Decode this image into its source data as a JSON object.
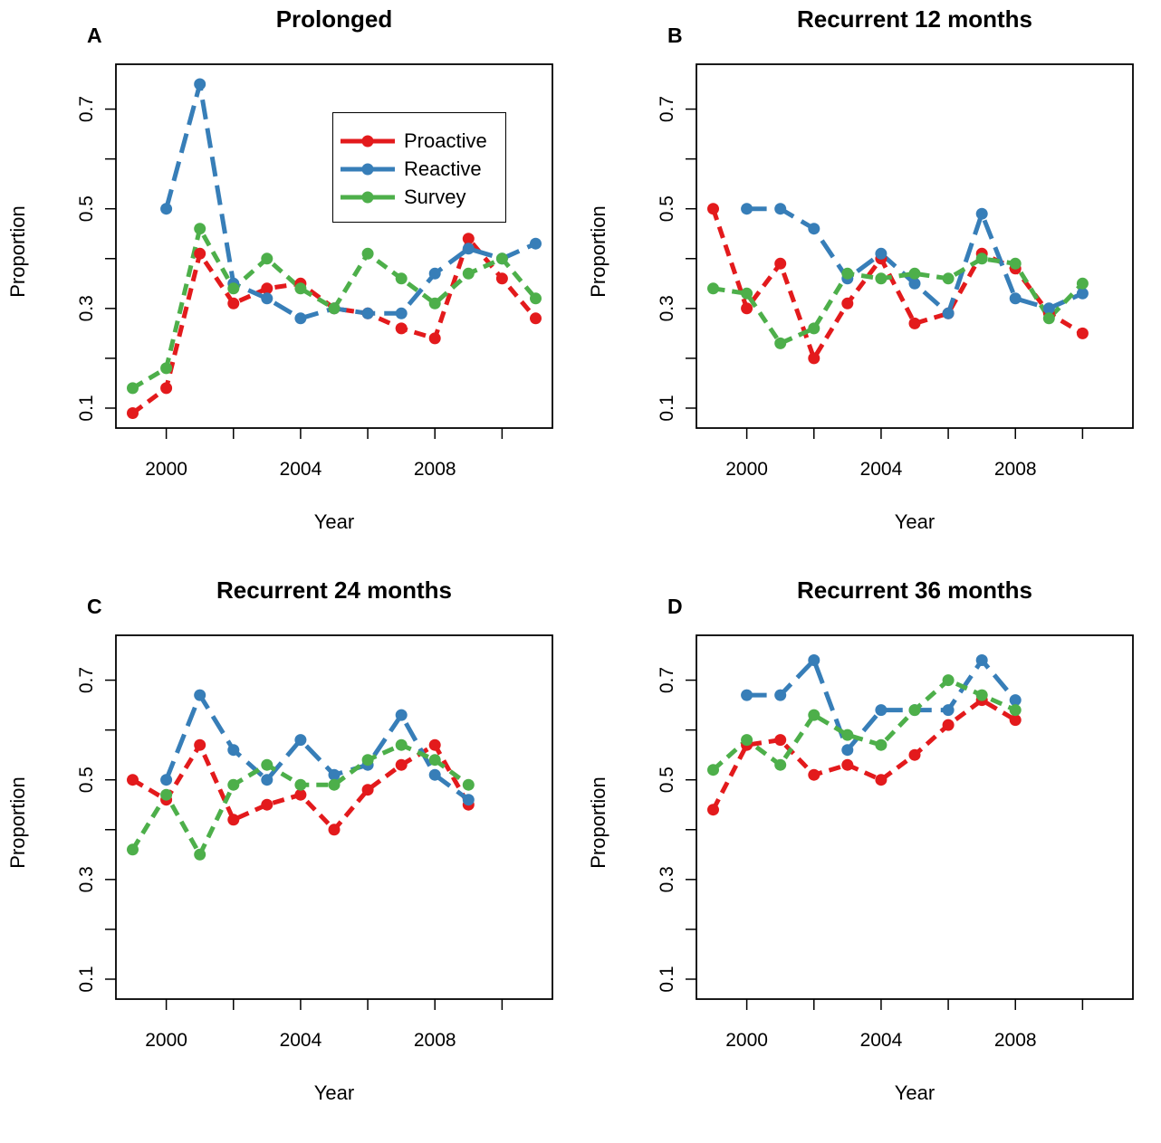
{
  "colors": {
    "Proactive": "#e31a1c",
    "Reactive": "#377eb8",
    "Survey": "#4daf4a"
  },
  "legend": {
    "placement": "top-right",
    "items": [
      "Proactive",
      "Reactive",
      "Survey"
    ]
  },
  "chart_data": [
    {
      "type": "line",
      "panel": "A",
      "title": "Prolonged",
      "xlabel": "Year",
      "ylabel": "Proportion",
      "xlim": [
        1998.5,
        2011.5
      ],
      "ylim": [
        0.06,
        0.79
      ],
      "xticks": [
        2000,
        2002,
        2004,
        2006,
        2008,
        2010
      ],
      "xticklabels": [
        "2000",
        "",
        "2004",
        "",
        "2008",
        ""
      ],
      "yticks": [
        0.1,
        0.2,
        0.3,
        0.4,
        0.5,
        0.6,
        0.7
      ],
      "yticklabels": [
        "0.1",
        "",
        "0.3",
        "",
        "0.5",
        "",
        "0.7"
      ],
      "series": [
        {
          "name": "Proactive",
          "x": [
            1999,
            2000,
            2001,
            2002,
            2003,
            2004,
            2005,
            2006,
            2007,
            2008,
            2009,
            2010,
            2011
          ],
          "values": [
            0.09,
            0.14,
            0.41,
            0.31,
            0.34,
            0.35,
            0.3,
            0.29,
            0.26,
            0.24,
            0.44,
            0.36,
            0.28
          ]
        },
        {
          "name": "Reactive",
          "x": [
            2000,
            2001,
            2002,
            2003,
            2004,
            2005,
            2006,
            2007,
            2008,
            2009,
            2010,
            2011
          ],
          "values": [
            0.5,
            0.75,
            0.35,
            0.32,
            0.28,
            0.3,
            0.29,
            0.29,
            0.37,
            0.42,
            0.4,
            0.43
          ]
        },
        {
          "name": "Survey",
          "x": [
            1999,
            2000,
            2001,
            2002,
            2003,
            2004,
            2005,
            2006,
            2007,
            2008,
            2009,
            2010,
            2011
          ],
          "values": [
            0.14,
            0.18,
            0.46,
            0.34,
            0.4,
            0.34,
            0.3,
            0.41,
            0.36,
            0.31,
            0.37,
            0.4,
            0.32
          ]
        }
      ]
    },
    {
      "type": "line",
      "panel": "B",
      "title": "Recurrent 12 months",
      "xlabel": "Year",
      "ylabel": "Proportion",
      "xlim": [
        1998.5,
        2011.5
      ],
      "ylim": [
        0.06,
        0.79
      ],
      "xticks": [
        2000,
        2002,
        2004,
        2006,
        2008,
        2010
      ],
      "xticklabels": [
        "2000",
        "",
        "2004",
        "",
        "2008",
        ""
      ],
      "yticks": [
        0.1,
        0.2,
        0.3,
        0.4,
        0.5,
        0.6,
        0.7
      ],
      "yticklabels": [
        "0.1",
        "",
        "0.3",
        "",
        "0.5",
        "",
        "0.7"
      ],
      "series": [
        {
          "name": "Proactive",
          "x": [
            1999,
            2000,
            2001,
            2002,
            2003,
            2004,
            2005,
            2006,
            2007,
            2008,
            2009,
            2010
          ],
          "values": [
            0.5,
            0.3,
            0.39,
            0.2,
            0.31,
            0.4,
            0.27,
            0.29,
            0.41,
            0.38,
            0.29,
            0.25
          ]
        },
        {
          "name": "Reactive",
          "x": [
            2000,
            2001,
            2002,
            2003,
            2004,
            2005,
            2006,
            2007,
            2008,
            2009,
            2010
          ],
          "values": [
            0.5,
            0.5,
            0.46,
            0.36,
            0.41,
            0.35,
            0.29,
            0.49,
            0.32,
            0.3,
            0.33
          ]
        },
        {
          "name": "Survey",
          "x": [
            1999,
            2000,
            2001,
            2002,
            2003,
            2004,
            2005,
            2006,
            2007,
            2008,
            2009,
            2010
          ],
          "values": [
            0.34,
            0.33,
            0.23,
            0.26,
            0.37,
            0.36,
            0.37,
            0.36,
            0.4,
            0.39,
            0.28,
            0.35
          ]
        }
      ]
    },
    {
      "type": "line",
      "panel": "C",
      "title": "Recurrent 24 months",
      "xlabel": "Year",
      "ylabel": "Proportion",
      "xlim": [
        1998.5,
        2011.5
      ],
      "ylim": [
        0.06,
        0.79
      ],
      "xticks": [
        2000,
        2002,
        2004,
        2006,
        2008,
        2010
      ],
      "xticklabels": [
        "2000",
        "",
        "2004",
        "",
        "2008",
        ""
      ],
      "yticks": [
        0.1,
        0.2,
        0.3,
        0.4,
        0.5,
        0.6,
        0.7
      ],
      "yticklabels": [
        "0.1",
        "",
        "0.3",
        "",
        "0.5",
        "",
        "0.7"
      ],
      "series": [
        {
          "name": "Proactive",
          "x": [
            1999,
            2000,
            2001,
            2002,
            2003,
            2004,
            2005,
            2006,
            2007,
            2008,
            2009
          ],
          "values": [
            0.5,
            0.46,
            0.57,
            0.42,
            0.45,
            0.47,
            0.4,
            0.48,
            0.53,
            0.57,
            0.45
          ]
        },
        {
          "name": "Reactive",
          "x": [
            2000,
            2001,
            2002,
            2003,
            2004,
            2005,
            2006,
            2007,
            2008,
            2009
          ],
          "values": [
            0.5,
            0.67,
            0.56,
            0.5,
            0.58,
            0.51,
            0.53,
            0.63,
            0.51,
            0.46
          ]
        },
        {
          "name": "Survey",
          "x": [
            1999,
            2000,
            2001,
            2002,
            2003,
            2004,
            2005,
            2006,
            2007,
            2008,
            2009
          ],
          "values": [
            0.36,
            0.47,
            0.35,
            0.49,
            0.53,
            0.49,
            0.49,
            0.54,
            0.57,
            0.54,
            0.49
          ]
        }
      ]
    },
    {
      "type": "line",
      "panel": "D",
      "title": "Recurrent 36 months",
      "xlabel": "Year",
      "ylabel": "Proportion",
      "xlim": [
        1998.5,
        2011.5
      ],
      "ylim": [
        0.06,
        0.79
      ],
      "xticks": [
        2000,
        2002,
        2004,
        2006,
        2008,
        2010
      ],
      "xticklabels": [
        "2000",
        "",
        "2004",
        "",
        "2008",
        ""
      ],
      "yticks": [
        0.1,
        0.2,
        0.3,
        0.4,
        0.5,
        0.6,
        0.7
      ],
      "yticklabels": [
        "0.1",
        "",
        "0.3",
        "",
        "0.5",
        "",
        "0.7"
      ],
      "series": [
        {
          "name": "Proactive",
          "x": [
            1999,
            2000,
            2001,
            2002,
            2003,
            2004,
            2005,
            2006,
            2007,
            2008
          ],
          "values": [
            0.44,
            0.57,
            0.58,
            0.51,
            0.53,
            0.5,
            0.55,
            0.61,
            0.66,
            0.62
          ]
        },
        {
          "name": "Reactive",
          "x": [
            2000,
            2001,
            2002,
            2003,
            2004,
            2005,
            2006,
            2007,
            2008
          ],
          "values": [
            0.67,
            0.67,
            0.74,
            0.56,
            0.64,
            0.64,
            0.64,
            0.74,
            0.66
          ]
        },
        {
          "name": "Survey",
          "x": [
            1999,
            2000,
            2001,
            2002,
            2003,
            2004,
            2005,
            2006,
            2007,
            2008
          ],
          "values": [
            0.52,
            0.58,
            0.53,
            0.63,
            0.59,
            0.57,
            0.64,
            0.7,
            0.67,
            0.64
          ]
        }
      ]
    }
  ]
}
